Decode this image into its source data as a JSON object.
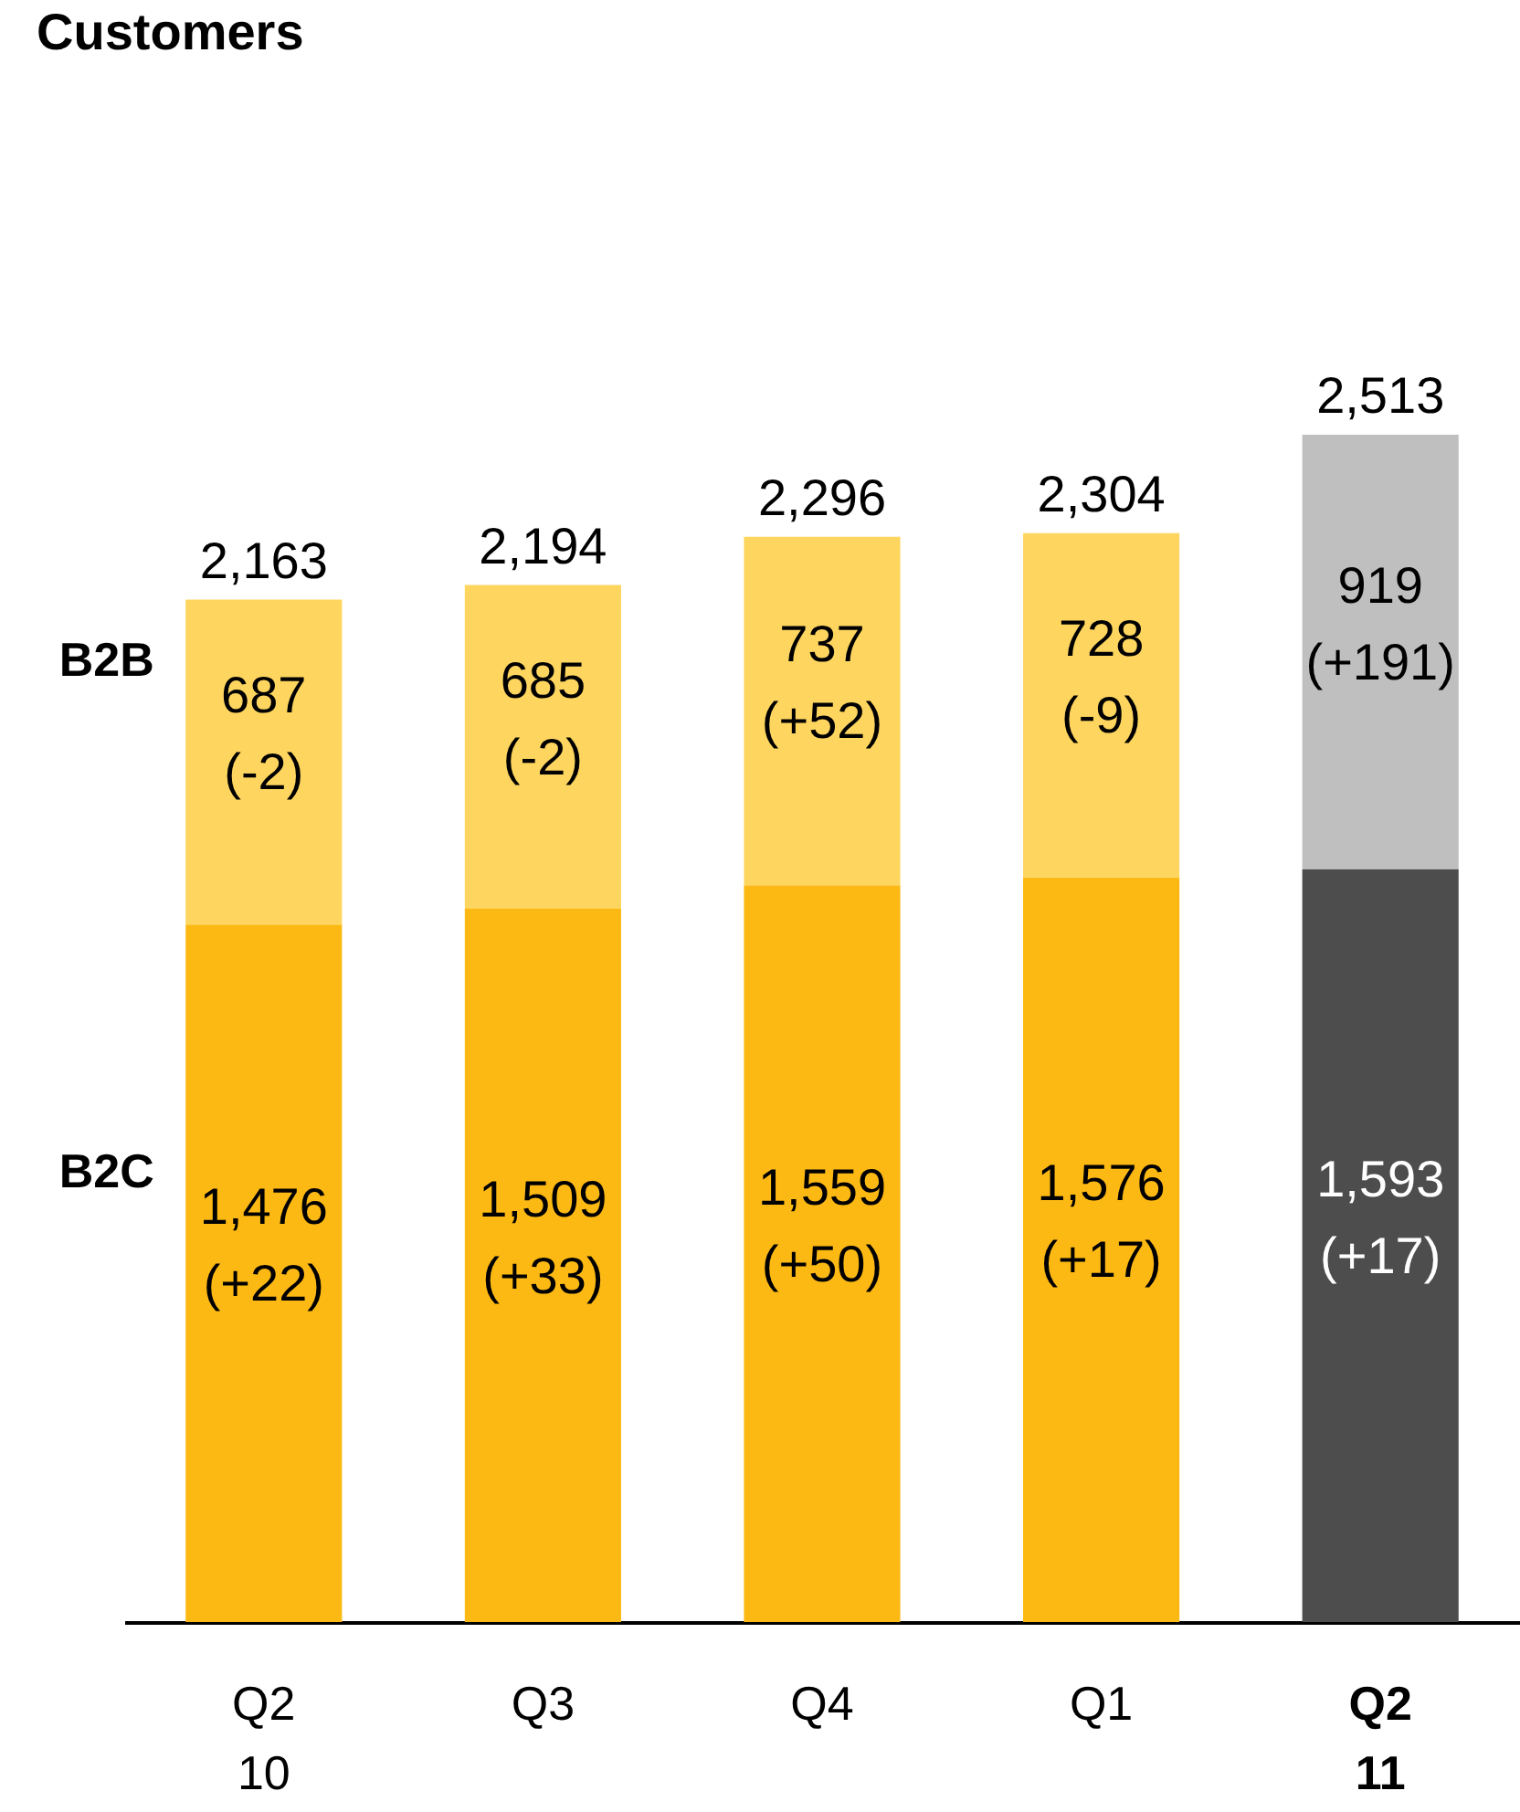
{
  "chart_data": {
    "type": "bar",
    "title": "Customers",
    "categories": [
      "Q2\n10",
      "Q3",
      "Q4",
      "Q1",
      "Q2\n11"
    ],
    "stacked": true,
    "series": [
      {
        "name": "B2C",
        "colors": [
          "#fdb913",
          "#fdb913",
          "#fdb913",
          "#fdb913",
          "#4d4d4d"
        ],
        "values": [
          1476,
          1509,
          1559,
          1576,
          1593
        ],
        "value_labels": [
          "1,476\n(+22)",
          "1,509\n(+33)",
          "1,559\n(+50)",
          "1,576\n(+17)",
          "1,593\n(+17)"
        ]
      },
      {
        "name": "B2B",
        "colors": [
          "#fed55e",
          "#fed55e",
          "#fed55e",
          "#fed55e",
          "#bfbfbf"
        ],
        "values": [
          687,
          685,
          737,
          728,
          919
        ],
        "value_labels": [
          "687\n(-2)",
          "685\n(-2)",
          "737\n(+52)",
          "728\n(-9)",
          "919\n(+191)"
        ]
      }
    ],
    "totals": [
      "2,163",
      "2,194",
      "2,296",
      "2,304",
      "2,513"
    ]
  }
}
